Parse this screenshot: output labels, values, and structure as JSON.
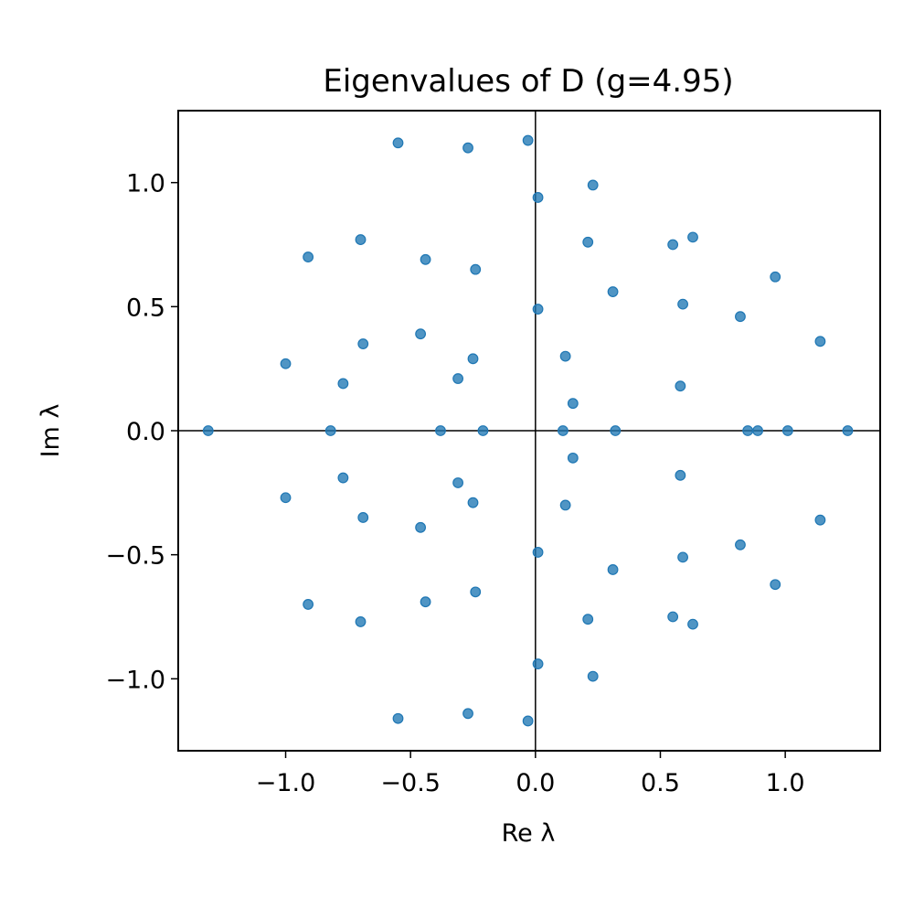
{
  "chart_data": {
    "type": "scatter",
    "title": "Eigenvalues of D  (g=4.95)",
    "xlabel": "Re λ",
    "ylabel": "Im λ",
    "xlim": [
      -1.43,
      1.38
    ],
    "ylim": [
      -1.29,
      1.29
    ],
    "xticks": [
      -1.0,
      -0.5,
      0.0,
      0.5,
      1.0
    ],
    "xtick_labels": [
      "−1.0",
      "−0.5",
      "0.0",
      "0.5",
      "1.0"
    ],
    "yticks": [
      -1.0,
      -0.5,
      0.0,
      0.5,
      1.0
    ],
    "ytick_labels": [
      "−1.0",
      "−0.5",
      "0.0",
      "0.5",
      "1.0"
    ],
    "grid": false,
    "reference_lines": [
      "x=0",
      "y=0"
    ],
    "marker_color": "#1f77b4",
    "points": [
      [
        -1.31,
        0.0
      ],
      [
        -0.82,
        0.0
      ],
      [
        -0.38,
        0.0
      ],
      [
        -0.21,
        0.0
      ],
      [
        0.11,
        0.0
      ],
      [
        0.32,
        0.0
      ],
      [
        0.85,
        0.0
      ],
      [
        0.89,
        0.0
      ],
      [
        1.01,
        0.0
      ],
      [
        1.25,
        0.0
      ],
      [
        -0.55,
        1.16
      ],
      [
        -0.55,
        -1.16
      ],
      [
        -0.27,
        1.14
      ],
      [
        -0.27,
        -1.14
      ],
      [
        -0.03,
        1.17
      ],
      [
        -0.03,
        -1.17
      ],
      [
        0.23,
        0.99
      ],
      [
        0.23,
        -0.99
      ],
      [
        0.01,
        0.94
      ],
      [
        0.01,
        -0.94
      ],
      [
        -0.91,
        0.7
      ],
      [
        -0.91,
        -0.7
      ],
      [
        -0.7,
        0.77
      ],
      [
        -0.7,
        -0.77
      ],
      [
        -0.44,
        0.69
      ],
      [
        -0.44,
        -0.69
      ],
      [
        -0.24,
        0.65
      ],
      [
        -0.24,
        -0.65
      ],
      [
        0.21,
        0.76
      ],
      [
        0.21,
        -0.76
      ],
      [
        0.55,
        0.75
      ],
      [
        0.55,
        -0.75
      ],
      [
        0.63,
        0.78
      ],
      [
        0.63,
        -0.78
      ],
      [
        0.96,
        0.62
      ],
      [
        0.96,
        -0.62
      ],
      [
        0.31,
        0.56
      ],
      [
        0.31,
        -0.56
      ],
      [
        0.59,
        0.51
      ],
      [
        0.59,
        -0.51
      ],
      [
        0.82,
        0.46
      ],
      [
        0.82,
        -0.46
      ],
      [
        0.01,
        0.49
      ],
      [
        0.01,
        -0.49
      ],
      [
        1.14,
        0.36
      ],
      [
        1.14,
        -0.36
      ],
      [
        -0.46,
        0.39
      ],
      [
        -0.46,
        -0.39
      ],
      [
        -0.69,
        0.35
      ],
      [
        -0.69,
        -0.35
      ],
      [
        -1.0,
        0.27
      ],
      [
        -1.0,
        -0.27
      ],
      [
        -0.77,
        0.19
      ],
      [
        -0.77,
        -0.19
      ],
      [
        -0.31,
        0.21
      ],
      [
        -0.31,
        -0.21
      ],
      [
        -0.25,
        0.29
      ],
      [
        -0.25,
        -0.29
      ],
      [
        0.12,
        0.3
      ],
      [
        0.12,
        -0.3
      ],
      [
        0.15,
        0.11
      ],
      [
        0.15,
        -0.11
      ],
      [
        0.58,
        0.18
      ],
      [
        0.58,
        -0.18
      ]
    ]
  }
}
